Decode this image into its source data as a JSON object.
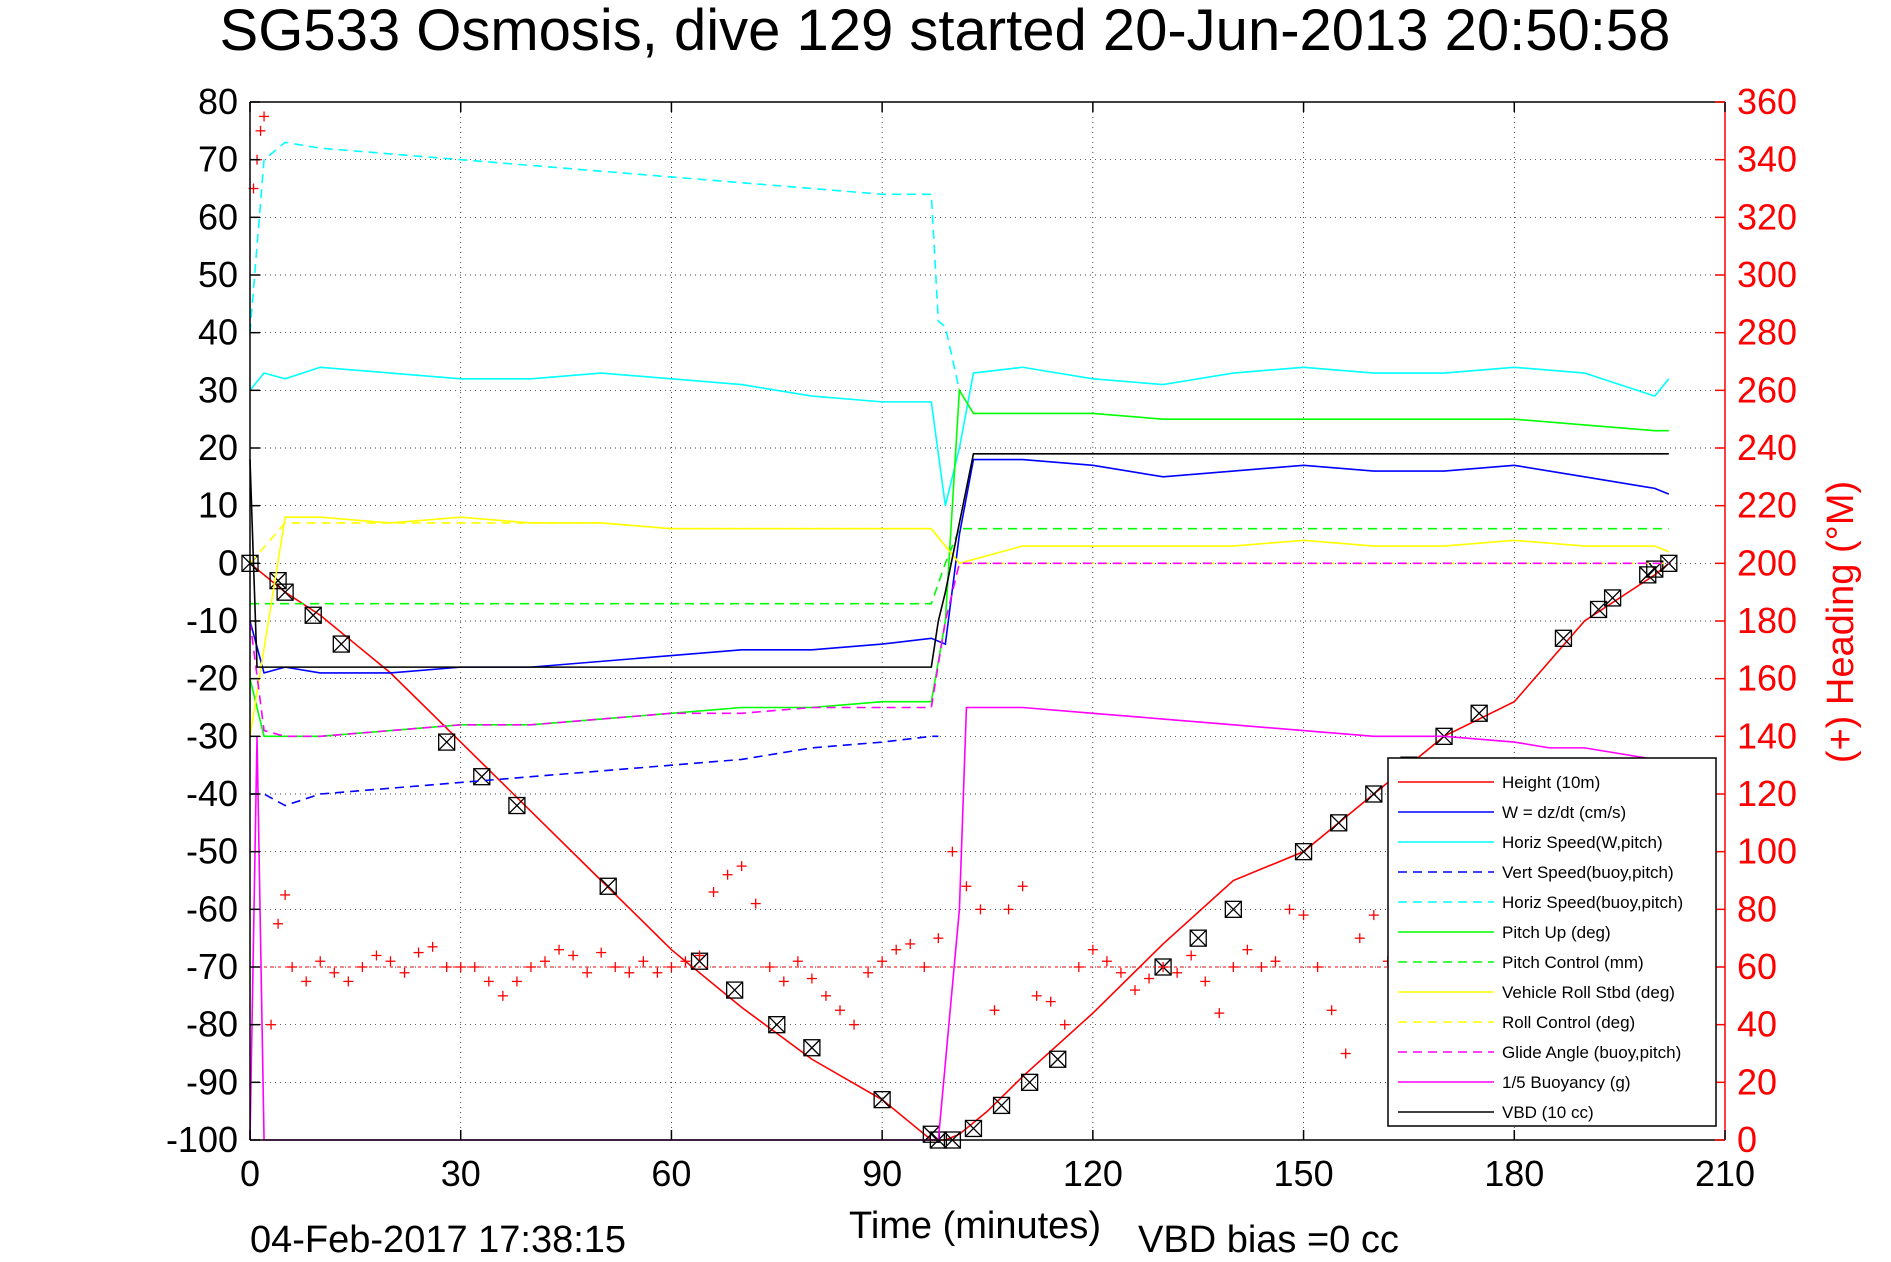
{
  "title": "SG533 Osmosis, dive 129 started 20-Jun-2013 20:50:58",
  "footer_left": "04-Feb-2017 17:38:15",
  "footer_right": "VBD bias =0 cc",
  "colors": {
    "height": "#ff0000",
    "w": "#0000ff",
    "horiz": "#00ffff",
    "pitch": "#00ff00",
    "roll": "#ffff00",
    "glide": "#ff00ff",
    "buoy": "#ff00ff",
    "vbd": "#000000",
    "heading": "#ff0000"
  },
  "chart_data": {
    "type": "line",
    "xlabel": "Time (minutes)",
    "ylabel_right": "(+) Heading (°M)",
    "xlim": [
      0,
      210
    ],
    "ylim": [
      -100,
      80
    ],
    "ylim_right": [
      0,
      360
    ],
    "x_ticks": [
      0,
      30,
      60,
      90,
      120,
      150,
      180,
      210
    ],
    "y_ticks": [
      80,
      70,
      60,
      50,
      40,
      30,
      20,
      10,
      0,
      -10,
      -20,
      -30,
      -40,
      -50,
      -60,
      -70,
      -80,
      -90,
      -100
    ],
    "y_ticks_right": [
      360,
      340,
      320,
      300,
      280,
      260,
      240,
      220,
      200,
      180,
      160,
      140,
      120,
      100,
      80,
      60,
      40,
      20,
      0
    ],
    "grid": true,
    "legend_position": "bottom-right",
    "series": [
      {
        "name": "Height (10m)",
        "color_key": "height",
        "dash": false,
        "x": [
          0,
          5,
          10,
          15,
          20,
          30,
          40,
          50,
          60,
          70,
          80,
          90,
          97,
          99,
          101,
          105,
          110,
          120,
          130,
          140,
          150,
          160,
          170,
          180,
          190,
          200,
          202
        ],
        "y": [
          0,
          -5,
          -9,
          -14,
          -19,
          -31,
          -43,
          -55,
          -67,
          -77,
          -86,
          -93,
          -100,
          -100,
          -99,
          -95,
          -89,
          -78,
          -66,
          -55,
          -50,
          -40,
          -30,
          -24,
          -10,
          -2,
          0
        ],
        "marker_x": [
          0,
          4,
          5,
          9,
          13,
          28,
          33,
          38,
          51,
          64,
          69,
          75,
          80,
          90,
          97,
          98,
          100,
          103,
          107,
          111,
          115,
          130,
          135,
          140,
          150,
          155,
          160,
          165,
          170,
          175,
          187,
          192,
          194,
          199,
          200,
          202
        ],
        "marker_y": [
          0,
          -3,
          -5,
          -9,
          -14,
          -31,
          -37,
          -42,
          -56,
          -69,
          -74,
          -80,
          -84,
          -93,
          -99,
          -100,
          -100,
          -98,
          -94,
          -90,
          -86,
          -70,
          -65,
          -60,
          -50,
          -45,
          -40,
          -35,
          -30,
          -26,
          -13,
          -8,
          -6,
          -2,
          -1,
          0
        ]
      },
      {
        "name": "W = dz/dt (cm/s)",
        "color_key": "w",
        "dash": false,
        "x": [
          0,
          2,
          5,
          10,
          20,
          30,
          40,
          50,
          60,
          70,
          80,
          90,
          97,
          99,
          101,
          103,
          110,
          120,
          130,
          140,
          150,
          160,
          170,
          180,
          190,
          200,
          202
        ],
        "y": [
          -10,
          -19,
          -18,
          -19,
          -19,
          -18,
          -18,
          -17,
          -16,
          -15,
          -15,
          -14,
          -13,
          -14,
          5,
          18,
          18,
          17,
          15,
          16,
          17,
          16,
          16,
          17,
          15,
          13,
          12
        ]
      },
      {
        "name": "Horiz Speed(W,pitch)",
        "color_key": "horiz",
        "dash": false,
        "x": [
          0,
          2,
          5,
          10,
          20,
          30,
          40,
          50,
          60,
          70,
          80,
          90,
          97,
          99,
          101,
          103,
          110,
          120,
          130,
          140,
          150,
          160,
          170,
          180,
          190,
          200,
          202
        ],
        "y": [
          30,
          33,
          32,
          34,
          33,
          32,
          32,
          33,
          32,
          31,
          29,
          28,
          28,
          10,
          20,
          33,
          34,
          32,
          31,
          33,
          34,
          33,
          33,
          34,
          33,
          29,
          32
        ]
      },
      {
        "name": "Vert Speed(buoy,pitch)",
        "color_key": "w",
        "dash": true,
        "x": [
          0,
          2,
          5,
          10,
          20,
          30,
          40,
          50,
          60,
          70,
          80,
          90,
          97,
          98
        ],
        "y": [
          -40,
          -40,
          -42,
          -40,
          -39,
          -38,
          -37,
          -36,
          -35,
          -34,
          -32,
          -31,
          -30,
          -30
        ]
      },
      {
        "name": "Horiz Speed(buoy,pitch)",
        "color_key": "horiz",
        "dash": true,
        "x": [
          0,
          2,
          5,
          10,
          20,
          30,
          40,
          50,
          60,
          70,
          80,
          90,
          97,
          98,
          99,
          101
        ],
        "y": [
          40,
          70,
          73,
          72,
          71,
          70,
          69,
          68,
          67,
          66,
          65,
          64,
          64,
          42,
          41,
          30
        ]
      },
      {
        "name": "Pitch Up (deg)",
        "color_key": "pitch",
        "dash": false,
        "x": [
          0,
          2,
          5,
          10,
          20,
          30,
          40,
          50,
          60,
          70,
          80,
          90,
          97,
          99,
          101,
          103,
          110,
          120,
          130,
          140,
          150,
          160,
          170,
          180,
          190,
          200,
          202
        ],
        "y": [
          -20,
          -30,
          -30,
          -30,
          -29,
          -28,
          -28,
          -27,
          -26,
          -25,
          -25,
          -24,
          -24,
          -10,
          30,
          26,
          26,
          26,
          25,
          25,
          25,
          25,
          25,
          25,
          24,
          23,
          23
        ]
      },
      {
        "name": "Pitch Control (mm)",
        "color_key": "pitch",
        "dash": true,
        "x": [
          0,
          5,
          30,
          60,
          90,
          97,
          99,
          101,
          110,
          130,
          160,
          200,
          202
        ],
        "y": [
          -7,
          -7,
          -7,
          -7,
          -7,
          -7,
          0,
          6,
          6,
          6,
          6,
          6,
          6
        ]
      },
      {
        "name": "Vehicle Roll Stbd (deg)",
        "color_key": "roll",
        "dash": false,
        "x": [
          0,
          5,
          10,
          20,
          30,
          40,
          50,
          60,
          70,
          80,
          90,
          97,
          101,
          110,
          120,
          130,
          140,
          150,
          160,
          170,
          180,
          190,
          200,
          202
        ],
        "y": [
          -30,
          8,
          8,
          7,
          8,
          7,
          7,
          6,
          6,
          6,
          6,
          6,
          0,
          3,
          3,
          3,
          3,
          4,
          3,
          3,
          4,
          3,
          3,
          2
        ]
      },
      {
        "name": "Roll Control (deg)",
        "color_key": "roll",
        "dash": true,
        "x": [
          0,
          5,
          10,
          20,
          30,
          40,
          50,
          60,
          70,
          80,
          90,
          97,
          101,
          110,
          120,
          130,
          140,
          150,
          160,
          170,
          180,
          190,
          200,
          202
        ],
        "y": [
          0,
          7,
          7,
          7,
          7,
          7,
          7,
          6,
          6,
          6,
          6,
          6,
          0,
          0,
          0,
          0,
          0,
          0,
          0,
          0,
          0,
          0,
          0,
          0
        ]
      },
      {
        "name": "Glide Angle (buoy,pitch)",
        "color_key": "glide",
        "dash": true,
        "x": [
          0,
          2,
          5,
          10,
          20,
          30,
          40,
          50,
          60,
          70,
          80,
          90,
          97,
          99,
          101,
          110,
          130,
          160,
          200,
          202
        ],
        "y": [
          -10,
          -29,
          -30,
          -30,
          -29,
          -28,
          -28,
          -27,
          -26,
          -26,
          -25,
          -25,
          -25,
          -10,
          0,
          0,
          0,
          0,
          0,
          0
        ]
      },
      {
        "name": "1/5 Buoyancy (g)",
        "color_key": "buoy",
        "dash": false,
        "x": [
          0,
          1,
          2,
          96,
          98,
          101,
          102,
          110,
          120,
          130,
          140,
          150,
          160,
          170,
          180,
          185,
          190,
          195,
          200,
          202
        ],
        "y": [
          -100,
          -30,
          -100,
          -100,
          -100,
          -60,
          -25,
          -25,
          -26,
          -27,
          -28,
          -29,
          -30,
          -30,
          -31,
          -32,
          -32,
          -33,
          -34,
          -34
        ]
      },
      {
        "name": "VBD (10 cc)",
        "color_key": "vbd",
        "dash": false,
        "x": [
          0,
          1,
          2,
          30,
          60,
          97,
          98,
          99,
          103,
          110,
          120,
          130,
          150,
          180,
          200,
          202
        ],
        "y": [
          18,
          -18,
          -18,
          -18,
          -18,
          -18,
          -10,
          -5,
          19,
          19,
          19,
          19,
          19,
          19,
          19,
          19
        ]
      }
    ],
    "heading": {
      "name": "(+) Heading (°M)",
      "axis": "right",
      "x": [
        0.5,
        1,
        1.5,
        2,
        3,
        4,
        5,
        6,
        8,
        10,
        12,
        14,
        16,
        18,
        20,
        22,
        24,
        26,
        28,
        30,
        32,
        34,
        36,
        38,
        40,
        42,
        44,
        46,
        48,
        50,
        52,
        54,
        56,
        58,
        60,
        62,
        64,
        66,
        68,
        70,
        72,
        74,
        76,
        78,
        80,
        82,
        84,
        86,
        88,
        90,
        92,
        94,
        96,
        98,
        100,
        102,
        104,
        106,
        108,
        110,
        112,
        114,
        116,
        118,
        120,
        122,
        124,
        126,
        128,
        130,
        132,
        134,
        136,
        138,
        140,
        142,
        144,
        146,
        148,
        150,
        152,
        154,
        156,
        158,
        160,
        162,
        164,
        166,
        168,
        170,
        172,
        174,
        176,
        178,
        180,
        182,
        184,
        186,
        188,
        190,
        192,
        194,
        196,
        198,
        200,
        202
      ],
      "y": [
        330,
        340,
        350,
        355,
        40,
        75,
        85,
        60,
        55,
        62,
        58,
        55,
        60,
        64,
        62,
        58,
        65,
        67,
        60,
        60,
        60,
        55,
        50,
        55,
        60,
        62,
        66,
        64,
        58,
        65,
        60,
        58,
        62,
        58,
        60,
        62,
        64,
        86,
        92,
        95,
        82,
        60,
        55,
        62,
        56,
        50,
        45,
        40,
        58,
        62,
        66,
        68,
        60,
        70,
        100,
        88,
        80,
        45,
        80,
        88,
        50,
        48,
        40,
        60,
        66,
        62,
        58,
        52,
        56,
        60,
        58,
        64,
        55,
        44,
        60,
        66,
        60,
        62,
        80,
        78,
        60,
        45,
        30,
        70,
        78,
        62,
        58,
        64,
        70,
        75,
        60,
        55,
        50,
        66,
        60,
        56,
        62,
        60,
        56,
        62,
        58,
        60,
        60,
        55,
        48,
        60
      ]
    }
  }
}
